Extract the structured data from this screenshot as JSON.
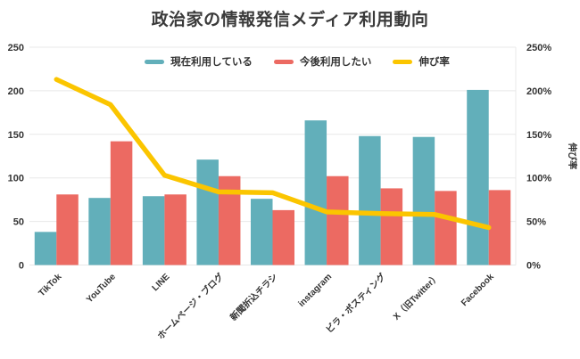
{
  "colors": {
    "background": "#ffffff",
    "grid": "#e8e8e8",
    "axis_text": "#333333",
    "title_text": "#3a3a3a",
    "bar_current": "#62afba",
    "bar_future": "#ec6a62",
    "line_growth": "#fbc500"
  },
  "chart_data": {
    "type": "bar",
    "title": "政治家の情報発信メディア利用動向",
    "categories": [
      "TikTok",
      "YouTube",
      "LINE",
      "ホームページ・ブログ",
      "新聞折込チラシ",
      "instagram",
      "ビラ・ポスティング",
      "X（旧Twitter）",
      "Facebook"
    ],
    "series": [
      {
        "name": "現在利用している",
        "type": "bar",
        "axis": "left",
        "color": "#62afba",
        "values": [
          38,
          77,
          79,
          121,
          76,
          166,
          148,
          147,
          201
        ]
      },
      {
        "name": "今後利用したい",
        "type": "bar",
        "axis": "left",
        "color": "#ec6a62",
        "values": [
          81,
          142,
          81,
          102,
          63,
          102,
          88,
          85,
          86
        ]
      },
      {
        "name": "伸び率",
        "type": "line",
        "axis": "right",
        "color": "#fbc500",
        "values": [
          213,
          184,
          103,
          84,
          83,
          61,
          59,
          58,
          43
        ]
      }
    ],
    "left_axis": {
      "range": [
        0,
        250
      ],
      "tick_values": [
        0,
        50,
        100,
        150,
        200,
        250
      ],
      "ticks": [
        "0",
        "50",
        "100",
        "150",
        "200",
        "250"
      ]
    },
    "right_axis": {
      "label": "伸び率",
      "range": [
        0,
        250
      ],
      "tick_values": [
        0,
        50,
        100,
        150,
        200,
        250
      ],
      "ticks": [
        "0%",
        "50%",
        "100%",
        "150%",
        "200%",
        "250%"
      ]
    },
    "grid": "horizontal",
    "legend_position": "top"
  }
}
